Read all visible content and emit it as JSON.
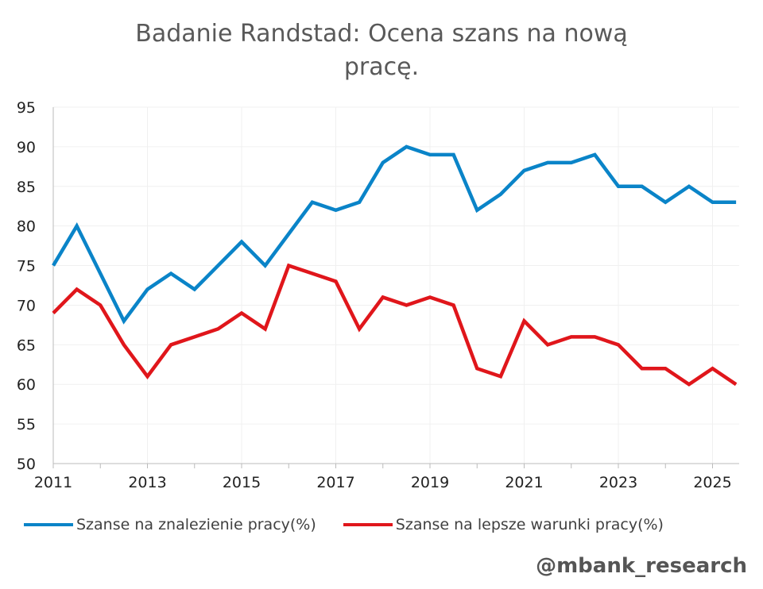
{
  "chart_data": {
    "type": "line",
    "title": "Badanie Randstad: Ocena szans na nową pracę.",
    "title_lines": [
      "Badanie Randstad: Ocena szans na nową",
      "pracę."
    ],
    "xlabel": "",
    "ylabel": "",
    "x": [
      2011,
      2011.5,
      2012,
      2012.5,
      2013,
      2013.5,
      2014,
      2014.5,
      2015,
      2015.5,
      2016,
      2016.5,
      2017,
      2017.5,
      2018,
      2018.5,
      2019,
      2019.5,
      2020,
      2020.5,
      2021,
      2021.5,
      2022,
      2022.5,
      2023,
      2023.5,
      2024,
      2024.5,
      2025,
      2025.5
    ],
    "xlim": [
      2011,
      2025.55
    ],
    "ylim": [
      50,
      95
    ],
    "yticks": [
      "50",
      "55",
      "60",
      "65",
      "70",
      "75",
      "80",
      "85",
      "90",
      "95"
    ],
    "xticks": [
      "2011",
      "2013",
      "2015",
      "2017",
      "2019",
      "2021",
      "2023",
      "2025"
    ],
    "grid": true,
    "legend_position": "bottom",
    "series": [
      {
        "name": "Szanse na znalezienie pracy(%)",
        "color": "#0a84c8",
        "values": [
          75,
          80,
          74,
          68,
          72,
          74,
          72,
          75,
          78,
          75,
          79,
          83,
          82,
          83,
          88,
          90,
          89,
          89,
          82,
          84,
          87,
          88,
          88,
          89,
          85,
          85,
          83,
          85,
          83,
          83
        ]
      },
      {
        "name": "Szanse na lepsze warunki pracy(%)",
        "color": "#e0161b",
        "values": [
          69,
          72,
          70,
          65,
          61,
          65,
          66,
          67,
          69,
          67,
          75,
          74,
          73,
          67,
          71,
          70,
          71,
          70,
          62,
          61,
          68,
          65,
          66,
          66,
          65,
          62,
          62,
          60,
          62,
          60
        ]
      }
    ]
  },
  "watermark": "@mbank_research"
}
